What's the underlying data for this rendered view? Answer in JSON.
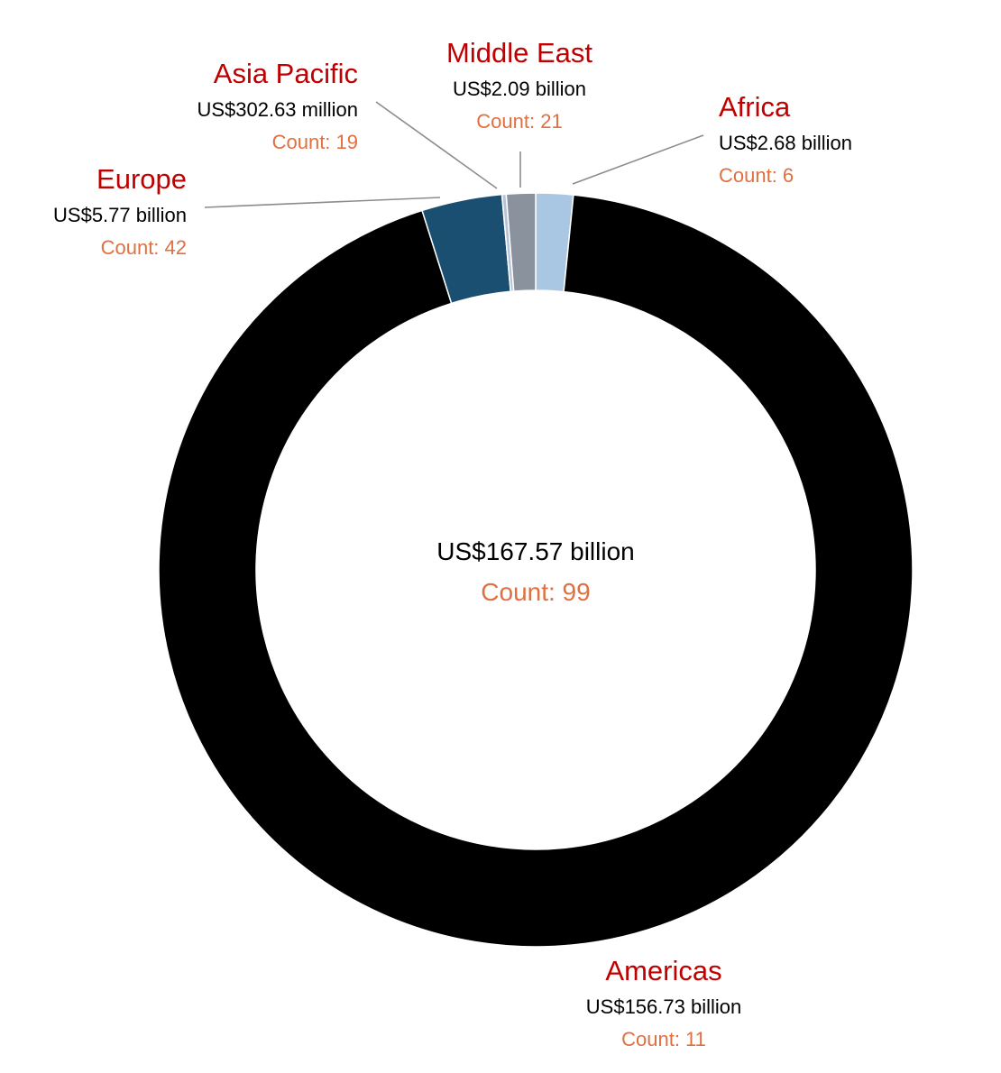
{
  "colors": {
    "name_text": "#c00000",
    "value_text": "#000000",
    "count_text": "#e07040",
    "leader_line": "#8c8c8c"
  },
  "chart_data": {
    "type": "pie",
    "variant": "donut",
    "unit": "US$ billion",
    "total": {
      "value": 167.57,
      "value_label": "US$167.57 billion",
      "count": 99,
      "count_label": "Count: 99"
    },
    "slices": [
      {
        "id": "americas",
        "name": "Americas",
        "value": 156.73,
        "value_label": "US$156.73 billion",
        "count": 11,
        "count_label": "Count: 11",
        "color": "#000000"
      },
      {
        "id": "europe",
        "name": "Europe",
        "value": 5.77,
        "value_label": "US$5.77 billion",
        "count": 42,
        "count_label": "Count: 42",
        "color": "#1b4f72"
      },
      {
        "id": "asia-pacific",
        "name": "Asia Pacific",
        "value": 0.30263,
        "value_label": "US$302.63 million",
        "count": 19,
        "count_label": "Count: 19",
        "color": "#b8c4d6"
      },
      {
        "id": "middle-east",
        "name": "Middle East",
        "value": 2.09,
        "value_label": "US$2.09 billion",
        "count": 21,
        "count_label": "Count: 21",
        "color": "#8a929e"
      },
      {
        "id": "africa",
        "name": "Africa",
        "value": 2.68,
        "value_label": "US$2.68 billion",
        "count": 6,
        "count_label": "Count: 6",
        "color": "#a9c6e2"
      }
    ]
  }
}
